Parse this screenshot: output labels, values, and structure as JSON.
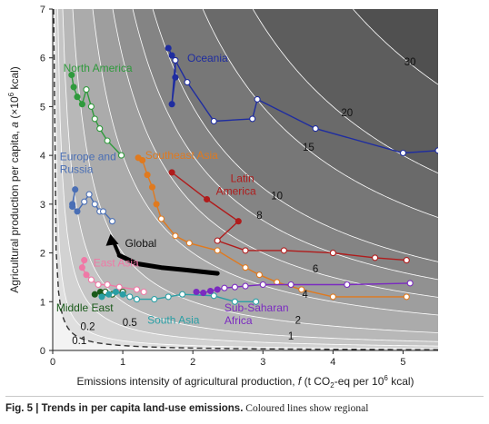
{
  "chart_data": {
    "type": "line",
    "xlabel_pre": "Emissions intensity of agricultural production, ",
    "xlabel_var": "f",
    "xlabel_unit_a": " (t CO",
    "xlabel_sub": "2",
    "xlabel_unit_b": "-eq per 10",
    "xlabel_sup": "6",
    "xlabel_unit_c": " kcal)",
    "ylabel_pre": "Agricultural production per capita, ",
    "ylabel_var": "a",
    "ylabel_unit_a": " (×10",
    "ylabel_sup": "6",
    "ylabel_unit_b": " kcal)",
    "xlim": [
      0,
      5.5
    ],
    "ylim": [
      0,
      7
    ],
    "x_ticks": [
      0,
      1,
      2,
      3,
      4,
      5
    ],
    "y_ticks": [
      0,
      1,
      2,
      3,
      4,
      5,
      6,
      7
    ],
    "contours": [
      {
        "value": 0.1,
        "label": "0.1",
        "lx": 0.38,
        "ly": 0.13
      },
      {
        "value": 0.2,
        "label": "0.2",
        "lx": 0.5,
        "ly": 0.42
      },
      {
        "value": 0.5,
        "label": "0.5",
        "lx": 1.1,
        "ly": 0.5
      },
      {
        "value": 1,
        "label": "1",
        "lx": 3.4,
        "ly": 0.22
      },
      {
        "value": 2,
        "label": "2",
        "lx": 3.5,
        "ly": 0.55
      },
      {
        "value": 4,
        "label": "4",
        "lx": 3.6,
        "ly": 1.08
      },
      {
        "value": 6,
        "label": "6",
        "lx": 3.75,
        "ly": 1.6
      },
      {
        "value": 8,
        "label": "8",
        "lx": 2.95,
        "ly": 2.7
      },
      {
        "value": 10,
        "label": "10",
        "lx": 3.2,
        "ly": 3.1
      },
      {
        "value": 15,
        "label": "15",
        "lx": 3.65,
        "ly": 4.1
      },
      {
        "value": 20,
        "label": "20",
        "lx": 4.2,
        "ly": 4.8
      },
      {
        "value": 30,
        "label": "30",
        "lx": 5.1,
        "ly": 5.85
      }
    ],
    "dashed_contour": 0.1,
    "series": [
      {
        "name": "North America",
        "color": "#2f9a3c",
        "lx": 0.15,
        "ly": 5.72,
        "points": [
          [
            0.27,
            5.65
          ],
          [
            0.3,
            5.4
          ],
          [
            0.35,
            5.2
          ],
          [
            0.42,
            5.05
          ],
          [
            0.48,
            5.35
          ],
          [
            0.55,
            5.0
          ],
          [
            0.6,
            4.75
          ],
          [
            0.67,
            4.55
          ],
          [
            0.78,
            4.3
          ],
          [
            0.98,
            4.0
          ]
        ]
      },
      {
        "name": "Europe and Russia",
        "color": "#4a6fb5",
        "lx": 0.1,
        "ly": 3.9,
        "points": [
          [
            0.28,
            3.0
          ],
          [
            0.32,
            3.3
          ],
          [
            0.28,
            2.95
          ],
          [
            0.35,
            2.85
          ],
          [
            0.45,
            3.05
          ],
          [
            0.52,
            3.2
          ],
          [
            0.6,
            3.0
          ],
          [
            0.67,
            2.85
          ],
          [
            0.72,
            2.85
          ],
          [
            0.85,
            2.65
          ]
        ]
      },
      {
        "name": "Oceania",
        "color": "#1f2da0",
        "lx": 1.92,
        "ly": 5.92,
        "points": [
          [
            1.65,
            6.2
          ],
          [
            1.7,
            6.05
          ],
          [
            1.75,
            5.95
          ],
          [
            1.75,
            5.6
          ],
          [
            1.7,
            5.05
          ],
          [
            1.75,
            5.95
          ],
          [
            1.92,
            5.5
          ],
          [
            2.3,
            4.7
          ],
          [
            2.85,
            4.75
          ],
          [
            2.92,
            5.15
          ],
          [
            3.75,
            4.55
          ],
          [
            5.0,
            4.05
          ],
          [
            5.5,
            4.1
          ]
        ]
      },
      {
        "name": "Southeast Asia",
        "color": "#e07a1f",
        "lx": 1.32,
        "ly": 3.93,
        "points": [
          [
            1.22,
            3.95
          ],
          [
            1.28,
            3.9
          ],
          [
            1.35,
            3.6
          ],
          [
            1.42,
            3.35
          ],
          [
            1.48,
            3.0
          ],
          [
            1.55,
            2.7
          ],
          [
            1.75,
            2.35
          ],
          [
            1.95,
            2.2
          ],
          [
            2.35,
            2.05
          ],
          [
            2.75,
            1.7
          ],
          [
            2.95,
            1.55
          ],
          [
            3.2,
            1.4
          ],
          [
            3.55,
            1.25
          ],
          [
            4.0,
            1.1
          ],
          [
            5.05,
            1.1
          ]
        ]
      },
      {
        "name": "Latin America",
        "color": "#b01c1c",
        "lx": 2.33,
        "ly": 3.45,
        "points": [
          [
            1.7,
            3.65
          ],
          [
            2.2,
            3.1
          ],
          [
            2.65,
            2.65
          ],
          [
            2.35,
            2.25
          ],
          [
            2.75,
            2.05
          ],
          [
            3.3,
            2.05
          ],
          [
            4.0,
            2.0
          ],
          [
            4.6,
            1.9
          ],
          [
            5.05,
            1.85
          ]
        ]
      },
      {
        "name": "East Asia",
        "color": "#ef79a6",
        "lx": 0.58,
        "ly": 1.72,
        "points": [
          [
            0.45,
            1.85
          ],
          [
            0.42,
            1.7
          ],
          [
            0.48,
            1.55
          ],
          [
            0.55,
            1.45
          ],
          [
            0.65,
            1.35
          ],
          [
            0.78,
            1.35
          ],
          [
            0.95,
            1.3
          ],
          [
            1.2,
            1.25
          ],
          [
            1.3,
            1.2
          ]
        ]
      },
      {
        "name": "Middle East",
        "color": "#1a5a1a",
        "lx": 0.05,
        "ly": 0.8,
        "points": [
          [
            0.6,
            1.15
          ],
          [
            0.68,
            1.2
          ],
          [
            0.75,
            1.2
          ],
          [
            0.85,
            1.15
          ],
          [
            1.0,
            1.2
          ]
        ]
      },
      {
        "name": "South Asia",
        "color": "#2a9fa5",
        "lx": 1.35,
        "ly": 0.55,
        "points": [
          [
            0.7,
            1.1
          ],
          [
            0.8,
            1.15
          ],
          [
            0.9,
            1.2
          ],
          [
            1.0,
            1.15
          ],
          [
            1.1,
            1.1
          ],
          [
            1.2,
            1.05
          ],
          [
            1.45,
            1.05
          ],
          [
            1.65,
            1.1
          ],
          [
            1.85,
            1.15
          ],
          [
            2.3,
            1.12
          ],
          [
            2.6,
            1.0
          ],
          [
            2.9,
            1.0
          ]
        ]
      },
      {
        "name": "Sub-Saharan Africa",
        "color": "#7b2bc0",
        "lx": 2.45,
        "ly": 0.8,
        "points": [
          [
            2.05,
            1.2
          ],
          [
            2.15,
            1.18
          ],
          [
            2.25,
            1.22
          ],
          [
            2.35,
            1.25
          ],
          [
            2.45,
            1.28
          ],
          [
            2.6,
            1.3
          ],
          [
            2.75,
            1.32
          ],
          [
            3.0,
            1.35
          ],
          [
            3.4,
            1.35
          ],
          [
            4.2,
            1.35
          ],
          [
            5.1,
            1.38
          ]
        ]
      }
    ],
    "global": {
      "label": "Global",
      "color": "#000000",
      "points": [
        [
          0.95,
          1.95
        ],
        [
          1.2,
          1.78
        ],
        [
          1.55,
          1.7
        ],
        [
          1.9,
          1.65
        ],
        [
          2.35,
          1.58
        ]
      ],
      "arrow_from": [
        0.95,
        1.95
      ],
      "arrow_to": [
        0.85,
        2.35
      ]
    }
  },
  "caption": {
    "fig": "Fig. 5 | ",
    "title": "Trends in per capita land-use emissions.",
    "text": " Coloured lines show regional"
  }
}
